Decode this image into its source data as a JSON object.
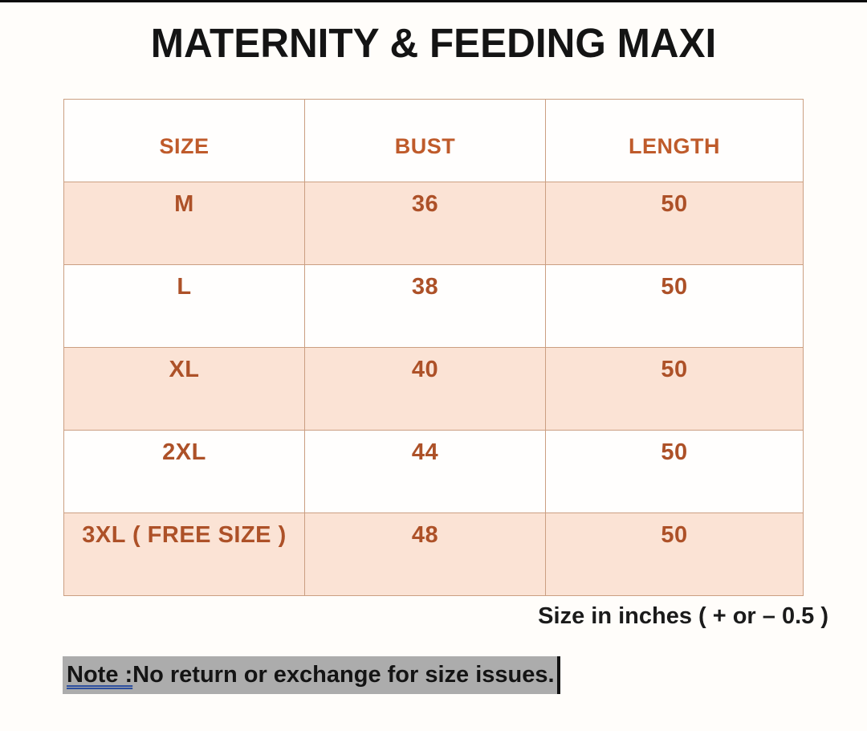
{
  "page": {
    "title": "MATERNITY & FEEDING MAXI"
  },
  "size_chart": {
    "columns": [
      "SIZE",
      "BUST",
      "LENGTH"
    ],
    "rows": [
      {
        "size": "M",
        "bust": "36",
        "length": "50"
      },
      {
        "size": "L",
        "bust": "38",
        "length": "50"
      },
      {
        "size": "XL",
        "bust": "40",
        "length": "50"
      },
      {
        "size": "2XL",
        "bust": "44",
        "length": "50"
      },
      {
        "size": "3XL ( FREE SIZE )",
        "bust": "48",
        "length": "50"
      }
    ],
    "unit_note": "Size in inches ( + or – 0.5 )"
  },
  "footer_note": {
    "label": "Note :",
    "text": " No return or exchange for size issues."
  },
  "colors": {
    "header_text": "#bf5b2b",
    "cell_text": "#ad5128",
    "row_highlight": "#fbe3d5",
    "table_border": "#cb9f82",
    "note_background": "#acacac",
    "note_underline": "#2d4f9e",
    "title_text": "#141414"
  }
}
